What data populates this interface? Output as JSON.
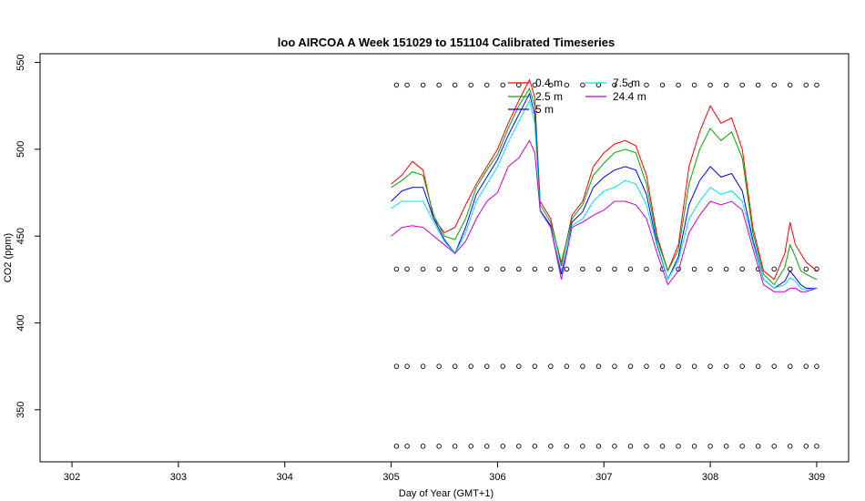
{
  "chart_data": {
    "type": "line",
    "title": "loo AIRCOA A  Week 151029 to 151104  Calibrated Timeseries",
    "xlabel": "Day of Year (GMT+1)",
    "ylabel": "CO2 (ppm)",
    "xlim": [
      301.7,
      309.3
    ],
    "ylim": [
      320,
      555
    ],
    "x_ticks": [
      "302",
      "303",
      "304",
      "305",
      "306",
      "307",
      "308",
      "309"
    ],
    "y_ticks": [
      "350",
      "400",
      "450",
      "500",
      "550"
    ],
    "grid": false,
    "legend_position": "top-center",
    "colors": {
      "h0_4": "#ff0000",
      "h2_5": "#00aa00",
      "h5": "#0000ff",
      "h7_5": "#00e5e5",
      "h24_4": "#cc00cc"
    },
    "series": [
      {
        "name": "0.4 m",
        "color": "#ff0000",
        "x": [
          305.0,
          305.1,
          305.2,
          305.3,
          305.4,
          305.5,
          305.6,
          305.7,
          305.8,
          305.9,
          306.0,
          306.1,
          306.2,
          306.25,
          306.3,
          306.35,
          306.4,
          306.5,
          306.6,
          306.7,
          306.8,
          306.9,
          307.0,
          307.1,
          307.2,
          307.3,
          307.4,
          307.5,
          307.6,
          307.7,
          307.8,
          307.9,
          308.0,
          308.1,
          308.2,
          308.3,
          308.4,
          308.5,
          308.6,
          308.7,
          308.75,
          308.8,
          308.85,
          308.9,
          309.0
        ],
        "y": [
          480,
          485,
          493,
          488,
          460,
          452,
          455,
          468,
          480,
          490,
          500,
          515,
          528,
          534,
          540,
          530,
          470,
          460,
          433,
          462,
          470,
          490,
          498,
          503,
          505,
          502,
          485,
          450,
          430,
          445,
          490,
          510,
          525,
          515,
          518,
          500,
          455,
          430,
          425,
          440,
          458,
          445,
          440,
          435,
          430
        ]
      },
      {
        "name": "2.5 m",
        "color": "#00aa00",
        "x": [
          305.0,
          305.1,
          305.2,
          305.3,
          305.4,
          305.5,
          305.6,
          305.7,
          305.8,
          305.9,
          306.0,
          306.1,
          306.2,
          306.25,
          306.3,
          306.35,
          306.4,
          306.5,
          306.6,
          306.7,
          306.8,
          306.9,
          307.0,
          307.1,
          307.2,
          307.3,
          307.4,
          307.5,
          307.6,
          307.7,
          307.8,
          307.9,
          308.0,
          308.1,
          308.2,
          308.3,
          308.4,
          308.5,
          308.6,
          308.7,
          308.75,
          308.8,
          308.85,
          308.9,
          309.0
        ],
        "y": [
          478,
          482,
          487,
          485,
          462,
          450,
          448,
          460,
          478,
          488,
          497,
          512,
          525,
          530,
          535,
          525,
          468,
          458,
          435,
          460,
          468,
          485,
          492,
          498,
          500,
          498,
          480,
          448,
          430,
          442,
          480,
          500,
          512,
          505,
          510,
          495,
          452,
          428,
          422,
          432,
          445,
          438,
          430,
          428,
          425
        ]
      },
      {
        "name": "5 m",
        "color": "#0000ff",
        "x": [
          305.0,
          305.1,
          305.2,
          305.3,
          305.4,
          305.5,
          305.6,
          305.7,
          305.8,
          305.9,
          306.0,
          306.1,
          306.2,
          306.25,
          306.3,
          306.35,
          306.4,
          306.5,
          306.6,
          306.7,
          306.8,
          306.9,
          307.0,
          307.1,
          307.2,
          307.3,
          307.4,
          307.5,
          307.6,
          307.7,
          307.8,
          307.9,
          308.0,
          308.1,
          308.2,
          308.3,
          308.4,
          308.5,
          308.6,
          308.7,
          308.75,
          308.8,
          308.85,
          308.9,
          309.0
        ],
        "y": [
          470,
          476,
          478,
          478,
          460,
          448,
          440,
          455,
          474,
          484,
          494,
          508,
          520,
          526,
          532,
          520,
          465,
          456,
          428,
          458,
          464,
          478,
          484,
          488,
          490,
          488,
          474,
          445,
          425,
          438,
          468,
          482,
          490,
          484,
          486,
          476,
          448,
          425,
          420,
          424,
          430,
          426,
          422,
          420,
          420
        ]
      },
      {
        "name": "7.5 m",
        "color": "#00e5e5",
        "x": [
          305.0,
          305.1,
          305.2,
          305.3,
          305.4,
          305.5,
          305.6,
          305.7,
          305.8,
          305.9,
          306.0,
          306.1,
          306.2,
          306.25,
          306.3,
          306.35,
          306.4,
          306.5,
          306.6,
          306.7,
          306.8,
          306.9,
          307.0,
          307.1,
          307.2,
          307.3,
          307.4,
          307.5,
          307.6,
          307.7,
          307.8,
          307.9,
          308.0,
          308.1,
          308.2,
          308.3,
          308.4,
          308.5,
          308.6,
          308.7,
          308.75,
          308.8,
          308.85,
          308.9,
          309.0
        ],
        "y": [
          466,
          470,
          470,
          470,
          458,
          447,
          440,
          452,
          470,
          480,
          490,
          504,
          516,
          522,
          528,
          515,
          464,
          455,
          430,
          456,
          460,
          470,
          476,
          478,
          482,
          480,
          468,
          444,
          425,
          436,
          460,
          470,
          478,
          474,
          476,
          470,
          446,
          425,
          420,
          422,
          426,
          424,
          420,
          419,
          420
        ]
      },
      {
        "name": "24.4 m",
        "color": "#cc00cc",
        "x": [
          305.0,
          305.1,
          305.2,
          305.3,
          305.4,
          305.5,
          305.6,
          305.7,
          305.8,
          305.9,
          306.0,
          306.1,
          306.2,
          306.25,
          306.3,
          306.35,
          306.4,
          306.5,
          306.6,
          306.7,
          306.8,
          306.9,
          307.0,
          307.1,
          307.2,
          307.3,
          307.4,
          307.5,
          307.6,
          307.7,
          307.8,
          307.9,
          308.0,
          308.1,
          308.2,
          308.3,
          308.4,
          308.5,
          308.6,
          308.7,
          308.75,
          308.8,
          308.85,
          308.9,
          309.0
        ],
        "y": [
          450,
          455,
          456,
          455,
          450,
          445,
          440,
          447,
          460,
          470,
          475,
          490,
          495,
          500,
          505,
          498,
          465,
          455,
          425,
          455,
          458,
          462,
          465,
          470,
          470,
          468,
          460,
          440,
          422,
          430,
          452,
          462,
          470,
          468,
          470,
          465,
          443,
          422,
          418,
          418,
          420,
          420,
          418,
          418,
          420
        ]
      }
    ],
    "markers": {
      "x": [
        305.05,
        305.15,
        305.3,
        305.45,
        305.6,
        305.75,
        305.9,
        306.05,
        306.2,
        306.35,
        306.5,
        306.65,
        306.8,
        306.95,
        307.1,
        307.25,
        307.4,
        307.55,
        307.7,
        307.85,
        308.0,
        308.15,
        308.3,
        308.45,
        308.6,
        308.75,
        308.9,
        309.0
      ],
      "levels": [
        537,
        431,
        375,
        329
      ]
    }
  }
}
